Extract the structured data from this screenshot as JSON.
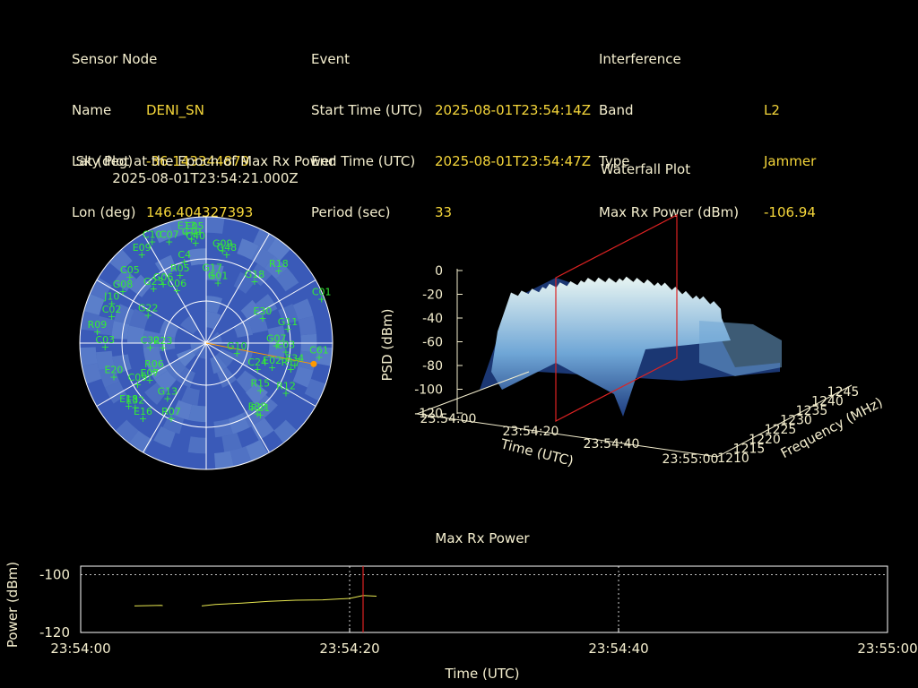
{
  "info": {
    "sensor": {
      "heading": "Sensor Node",
      "rows": [
        {
          "label": "Name",
          "value": "DENI_SN"
        },
        {
          "label": "Lat (deg)",
          "value": "-36.143344879"
        },
        {
          "label": "Lon (deg)",
          "value": "146.404327393"
        }
      ]
    },
    "event": {
      "heading": "Event",
      "rows": [
        {
          "label": "Start Time (UTC)",
          "value": "2025-08-01T23:54:14Z"
        },
        {
          "label": "End Time (UTC)",
          "value": "2025-08-01T23:54:47Z"
        },
        {
          "label": "Period (sec)",
          "value": "33"
        }
      ]
    },
    "interference": {
      "heading": "Interference",
      "rows": [
        {
          "label": "Band",
          "value": "L2"
        },
        {
          "label": "Type",
          "value": "Jammer"
        },
        {
          "label": "Max Rx Power (dBm)",
          "value": "-106.94"
        }
      ]
    }
  },
  "skyplot": {
    "title_line1": "Sky Plot at the Epoch of Max Rx Power",
    "title_line2": "2025-08-01T23:54:21.000Z",
    "colors": {
      "background": "#3a5ab8",
      "patch": "#5c7fca",
      "grid": "#ffffff",
      "sat": "#33ee33",
      "jammer": "#ff9900"
    },
    "jammer_azimuth_deg": 101,
    "jammer_elevation_deg": 12,
    "satellites": [
      {
        "id": "E13",
        "az": -10,
        "el": 10
      },
      {
        "id": "E05",
        "az": -6,
        "el": 11
      },
      {
        "id": "C19",
        "az": -8,
        "el": 15
      },
      {
        "id": "C10",
        "az": -28,
        "el": 8
      },
      {
        "id": "C07",
        "az": -20,
        "el": 13
      },
      {
        "id": "C40",
        "az": -6,
        "el": 18
      },
      {
        "id": "G09",
        "az": 10,
        "el": 23
      },
      {
        "id": "G48",
        "az": 13,
        "el": 25
      },
      {
        "id": "E09",
        "az": -36,
        "el": 12
      },
      {
        "id": "C4",
        "az": -15,
        "el": 30
      },
      {
        "id": "G17",
        "az": 5,
        "el": 41
      },
      {
        "id": "R05",
        "az": -21,
        "el": 38
      },
      {
        "id": "C05",
        "az": -49,
        "el": 18
      },
      {
        "id": "G06",
        "az": -36,
        "el": 38
      },
      {
        "id": "C06",
        "az": -29,
        "el": 47
      },
      {
        "id": "G08",
        "az": -58,
        "el": 20
      },
      {
        "id": "G23",
        "az": -44,
        "el": 36
      },
      {
        "id": "G01",
        "az": 11,
        "el": 46
      },
      {
        "id": "J10",
        "az": -67,
        "el": 17
      },
      {
        "id": "G18",
        "az": 38,
        "el": 34
      },
      {
        "id": "R18",
        "az": 45,
        "el": 17
      },
      {
        "id": "C01",
        "az": 69,
        "el": 2
      },
      {
        "id": "C02",
        "az": -74,
        "el": 20
      },
      {
        "id": "G22",
        "az": -64,
        "el": 44
      },
      {
        "id": "E30",
        "az": 66,
        "el": 46
      },
      {
        "id": "G11",
        "az": 80,
        "el": 31
      },
      {
        "id": "C32",
        "az": -94,
        "el": 50
      },
      {
        "id": "R23",
        "az": -96,
        "el": 59
      },
      {
        "id": "R09",
        "az": -84,
        "el": 12
      },
      {
        "id": "C03",
        "az": -92,
        "el": 18
      },
      {
        "id": "G07",
        "az": 92,
        "el": 40
      },
      {
        "id": "E03",
        "az": 96,
        "el": 33
      },
      {
        "id": "C61",
        "az": 97,
        "el": 9
      },
      {
        "id": "R17",
        "az": 107,
        "el": 27
      },
      {
        "id": "E34",
        "az": 104,
        "el": 25
      },
      {
        "id": "R06",
        "az": -118,
        "el": 48
      },
      {
        "id": "G10",
        "az": 108,
        "el": 67
      },
      {
        "id": "E02",
        "az": 110,
        "el": 40
      },
      {
        "id": "C24",
        "az": 117,
        "el": 49
      },
      {
        "id": "C09",
        "az": -121,
        "el": 33
      },
      {
        "id": "E20",
        "az": -110,
        "el": 20
      },
      {
        "id": "E07",
        "az": -123,
        "el": 42
      },
      {
        "id": "G13",
        "az": -145,
        "el": 42
      },
      {
        "id": "R15",
        "az": 131,
        "el": 39
      },
      {
        "id": "R12",
        "az": 122,
        "el": 23
      },
      {
        "id": "E18",
        "az": -129,
        "el": 19
      },
      {
        "id": "E32",
        "az": -132,
        "el": 22
      },
      {
        "id": "R21",
        "az": 143,
        "el": 26
      },
      {
        "id": "R07",
        "az": -155,
        "el": 31
      },
      {
        "id": "E33",
        "az": 144,
        "el": 28
      },
      {
        "id": "E16",
        "az": -140,
        "el": 20
      }
    ]
  },
  "waterfall": {
    "title": "Waterfall Plot",
    "zlabel": "PSD (dBm)",
    "xlabel": "Time (UTC)",
    "ylabel": "Frequency (MHz)",
    "z_ticks": [
      "0",
      "-20",
      "-40",
      "-60",
      "-80",
      "-100",
      "-120"
    ],
    "time_ticks": [
      "23:54:00",
      "23:54:20",
      "23:54:40",
      "23:55:00"
    ],
    "freq_ticks": [
      "1210",
      "1215",
      "1220",
      "1225",
      "1230",
      "1235",
      "1240",
      "1245"
    ],
    "colors": {
      "low": "#1e3d80",
      "mid": "#6fa6d6",
      "high": "#e8f5f2",
      "cursor": "#dd2222"
    }
  },
  "chart_data": {
    "type": "line",
    "title": "Max Rx Power",
    "xlabel": "Time (UTC)",
    "ylabel": "Power (dBm)",
    "x_ticks": [
      "23:54:00",
      "23:54:20",
      "23:54:40",
      "23:55:00"
    ],
    "y_ticks": [
      "-100",
      "-120"
    ],
    "xlim_sec": [
      0,
      60
    ],
    "ylim": [
      -120,
      -97
    ],
    "grid": true,
    "cursor_sec": 21,
    "series": [
      {
        "color": "#e8e850",
        "segments": [
          [
            [
              4,
              -110.8
            ],
            [
              6,
              -110.6
            ],
            [
              6.1,
              -110.7
            ]
          ],
          [
            [
              9,
              -110.8
            ],
            [
              10,
              -110.3
            ],
            [
              12,
              -109.8
            ],
            [
              14,
              -109.2
            ],
            [
              16,
              -108.8
            ],
            [
              18,
              -108.7
            ],
            [
              20,
              -108.2
            ],
            [
              21,
              -107.2
            ],
            [
              22,
              -107.4
            ]
          ]
        ]
      }
    ]
  }
}
